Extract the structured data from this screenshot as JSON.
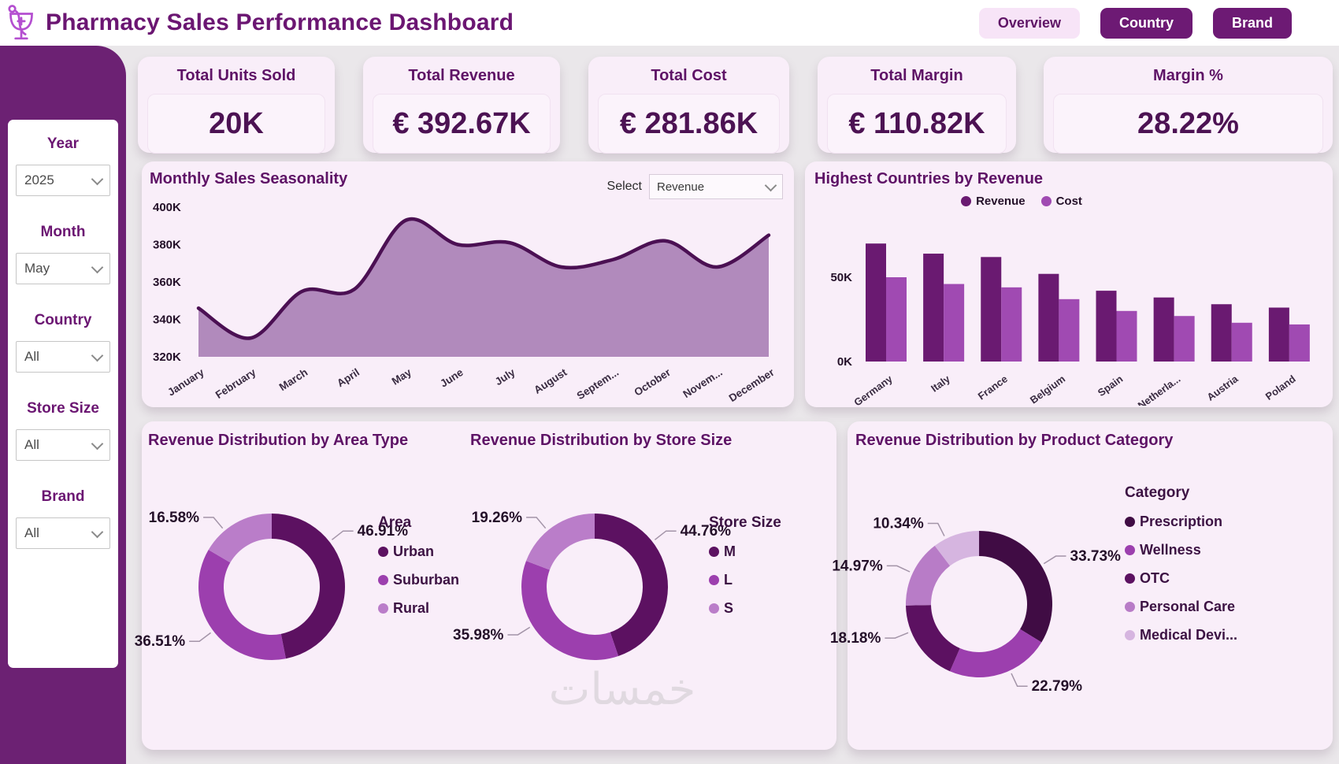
{
  "header": {
    "title": "Pharmacy Sales Performance Dashboard",
    "nav": [
      {
        "label": "Overview",
        "active": true
      },
      {
        "label": "Country",
        "active": false
      },
      {
        "label": "Brand",
        "active": false
      }
    ]
  },
  "sidebar": {
    "filters": [
      {
        "label": "Year",
        "value": "2025"
      },
      {
        "label": "Month",
        "value": "May"
      },
      {
        "label": "Country",
        "value": "All"
      },
      {
        "label": "Store Size",
        "value": "All"
      },
      {
        "label": "Brand",
        "value": "All"
      }
    ]
  },
  "kpis": [
    {
      "label": "Total Units Sold",
      "value": "20K"
    },
    {
      "label": "Total Revenue",
      "value": "€ 392.67K"
    },
    {
      "label": "Total Cost",
      "value": "€ 281.86K"
    },
    {
      "label": "Total Margin",
      "value": "€ 110.82K"
    },
    {
      "label": "Margin %",
      "value": "28.22%"
    }
  ],
  "watermark": "خمسات",
  "colors": {
    "accent_dark_purple": "#6a1a71",
    "accent_orchid": "#a04ab2",
    "area_fill": "#b18abc",
    "area_stroke": "#4b1053",
    "card_bg": "#f9eef9",
    "sidebar_bg": "#6c2173"
  },
  "chart_data": [
    {
      "id": "seasonality",
      "type": "area",
      "title": "Monthly Sales Seasonality",
      "select_label": "Select",
      "select_value": "Revenue",
      "x": [
        "January",
        "February",
        "March",
        "April",
        "May",
        "June",
        "July",
        "August",
        "Septem...",
        "October",
        "Novem...",
        "December"
      ],
      "values_k": [
        346,
        330,
        355,
        356,
        393,
        380,
        381,
        368,
        372,
        382,
        368,
        385
      ],
      "ylim_k": [
        320,
        400
      ],
      "yticks": [
        "400K",
        "380K",
        "360K",
        "340K",
        "320K"
      ],
      "fill": "#b18abc",
      "stroke": "#4b1053",
      "grid": false
    },
    {
      "id": "countries",
      "type": "bar",
      "title": "Highest Countries by Revenue",
      "categories": [
        "Germany",
        "Italy",
        "France",
        "Belgium",
        "Spain",
        "Netherla...",
        "Austria",
        "Poland"
      ],
      "series": [
        {
          "name": "Revenue",
          "color": "#6a1a71",
          "values_k": [
            70,
            64,
            62,
            52,
            42,
            38,
            34,
            32
          ]
        },
        {
          "name": "Cost",
          "color": "#a04ab2",
          "values_k": [
            50,
            46,
            44,
            37,
            30,
            27,
            23,
            22
          ]
        }
      ],
      "yticks": [
        "50K",
        "0K"
      ],
      "legend_position": "top-center",
      "grid": false
    },
    {
      "id": "area_type",
      "type": "donut",
      "title": "Revenue Distribution by Area Type",
      "legend_title": "Area",
      "slices": [
        {
          "label": "Urban",
          "pct": 46.91,
          "display": "46.91%",
          "color": "#5c1161",
          "label_angle": 52
        },
        {
          "label": "Suburban",
          "pct": 36.51,
          "display": "36.51%",
          "color": "#9c3fae",
          "label_angle": 233
        },
        {
          "label": "Rural",
          "pct": 16.58,
          "display": "16.58%",
          "color": "#ba7dc9",
          "label_angle": 320
        }
      ]
    },
    {
      "id": "store_size",
      "type": "donut",
      "title": "Revenue Distribution by Store Size",
      "legend_title": "Store Size",
      "slices": [
        {
          "label": "M",
          "pct": 44.76,
          "display": "44.76%",
          "color": "#5c1161",
          "label_angle": 52
        },
        {
          "label": "L",
          "pct": 35.98,
          "display": "35.98%",
          "color": "#9c3fae",
          "label_angle": 238
        },
        {
          "label": "S",
          "pct": 19.26,
          "display": "19.26%",
          "color": "#ba7dc9",
          "label_angle": 320
        }
      ]
    },
    {
      "id": "category",
      "type": "donut",
      "title": "Revenue Distribution by Product Category",
      "legend_title": "Category",
      "slices": [
        {
          "label": "Prescription",
          "pct": 33.73,
          "display": "33.73%",
          "color": "#400c44",
          "label_angle": 58
        },
        {
          "label": "Wellness",
          "pct": 22.79,
          "display": "22.79%",
          "color": "#9c3fae",
          "label_angle": 155
        },
        {
          "label": "OTC",
          "pct": 18.18,
          "display": "18.18%",
          "color": "#5c1161",
          "label_angle": 248
        },
        {
          "label": "Personal Care",
          "pct": 14.97,
          "display": "14.97%",
          "color": "#b87cc7",
          "label_angle": 295
        },
        {
          "label": "Medical Devi...",
          "pct": 10.34,
          "display": "10.34%",
          "color": "#d6b5e0",
          "label_angle": 333
        }
      ]
    }
  ]
}
